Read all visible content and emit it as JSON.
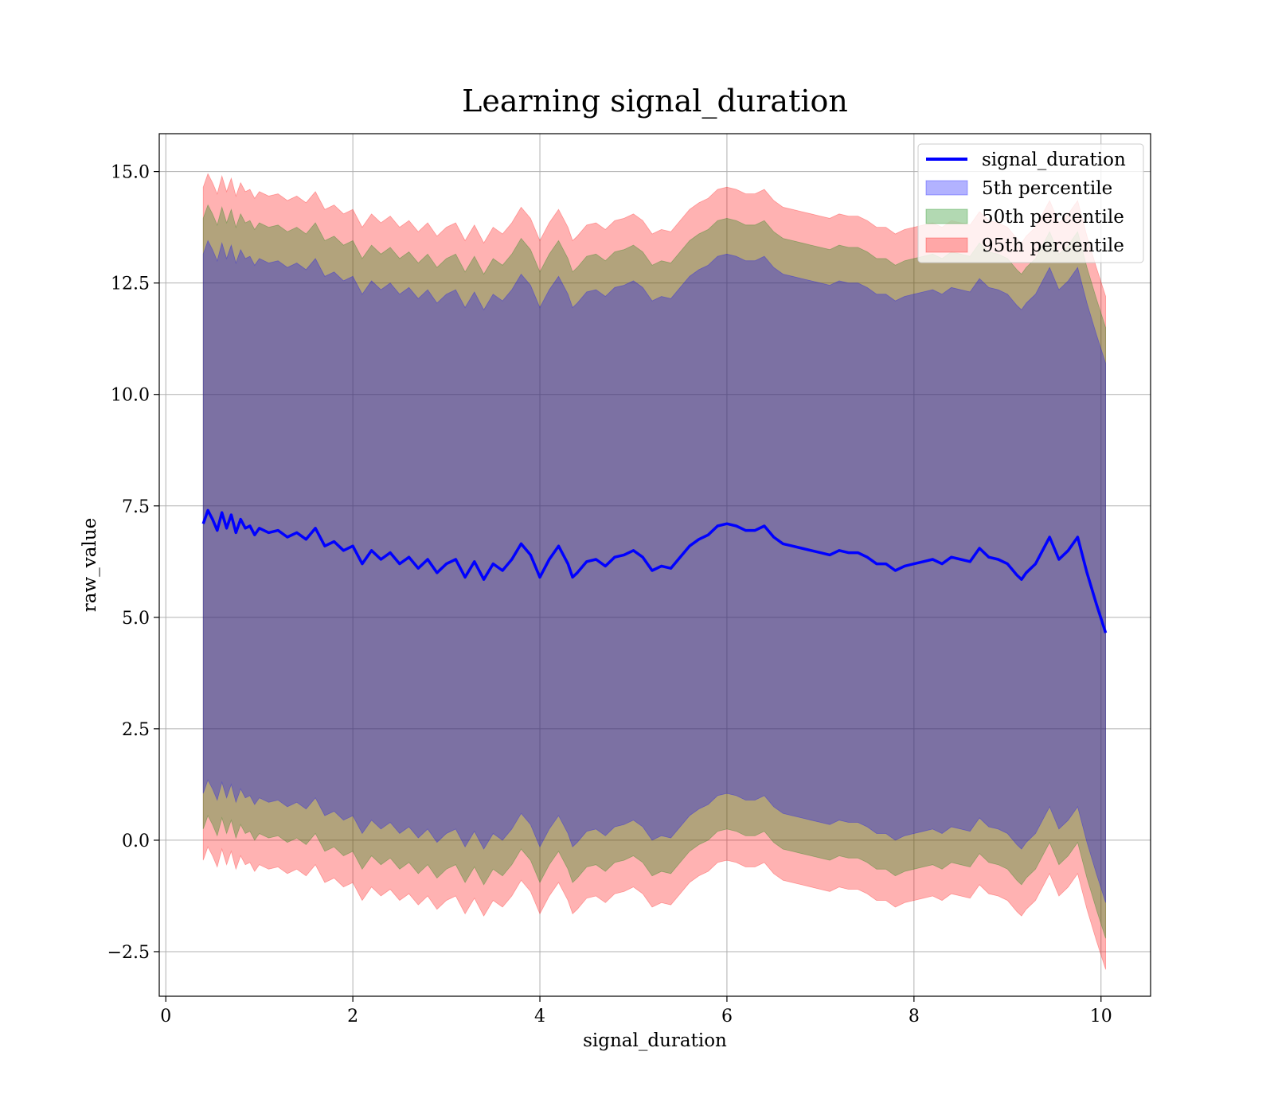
{
  "chart_data": {
    "type": "area",
    "title": "Learning signal_duration",
    "xlabel": "signal_duration",
    "ylabel": "raw_value",
    "xlim": [
      -0.07,
      10.53
    ],
    "ylim": [
      -3.5,
      15.85
    ],
    "xticks": [
      0,
      2,
      4,
      6,
      8,
      10
    ],
    "xtick_labels": [
      "0",
      "2",
      "4",
      "6",
      "8",
      "10"
    ],
    "yticks": [
      -2.5,
      0.0,
      2.5,
      5.0,
      7.5,
      10.0,
      12.5,
      15.0
    ],
    "ytick_labels": [
      "−2.5",
      "0.0",
      "2.5",
      "5.0",
      "7.5",
      "10.0",
      "12.5",
      "15.0"
    ],
    "grid": true,
    "legend_position": "top-right",
    "legend": [
      "signal_duration",
      "5th percentile",
      "50th percentile",
      "95th percentile"
    ],
    "colors": {
      "line": "#0000ff",
      "band_5": "#0000ff",
      "band_50": "#008000",
      "band_95": "#ff0000"
    },
    "series": [
      {
        "name": "signal_duration",
        "x": [
          0.4,
          0.45,
          0.5,
          0.55,
          0.6,
          0.65,
          0.7,
          0.75,
          0.8,
          0.85,
          0.9,
          0.95,
          1.0,
          1.1,
          1.2,
          1.3,
          1.4,
          1.5,
          1.6,
          1.7,
          1.8,
          1.9,
          2.0,
          2.1,
          2.2,
          2.3,
          2.4,
          2.5,
          2.6,
          2.7,
          2.8,
          2.9,
          3.0,
          3.1,
          3.2,
          3.3,
          3.4,
          3.5,
          3.6,
          3.7,
          3.8,
          3.9,
          4.0,
          4.1,
          4.2,
          4.3,
          4.35,
          4.4,
          4.5,
          4.6,
          4.7,
          4.8,
          4.9,
          5.0,
          5.1,
          5.2,
          5.3,
          5.4,
          5.5,
          5.6,
          5.7,
          5.8,
          5.9,
          6.0,
          6.1,
          6.2,
          6.3,
          6.4,
          6.5,
          6.6,
          6.7,
          6.8,
          6.9,
          7.0,
          7.1,
          7.2,
          7.3,
          7.4,
          7.5,
          7.6,
          7.7,
          7.8,
          7.9,
          8.0,
          8.1,
          8.2,
          8.3,
          8.4,
          8.5,
          8.6,
          8.7,
          8.8,
          8.9,
          9.0,
          9.1,
          9.15,
          9.2,
          9.3,
          9.45,
          9.55,
          9.65,
          9.75,
          9.85,
          9.95,
          10.05
        ],
        "values": [
          7.1,
          7.4,
          7.2,
          6.95,
          7.35,
          7.0,
          7.3,
          6.9,
          7.2,
          7.0,
          7.05,
          6.85,
          7.0,
          6.9,
          6.95,
          6.8,
          6.9,
          6.75,
          7.0,
          6.6,
          6.7,
          6.5,
          6.6,
          6.2,
          6.5,
          6.3,
          6.45,
          6.2,
          6.35,
          6.1,
          6.3,
          6.0,
          6.2,
          6.3,
          5.9,
          6.25,
          5.85,
          6.2,
          6.05,
          6.3,
          6.65,
          6.4,
          5.9,
          6.3,
          6.6,
          6.2,
          5.9,
          6.0,
          6.25,
          6.3,
          6.15,
          6.35,
          6.4,
          6.5,
          6.35,
          6.05,
          6.15,
          6.1,
          6.35,
          6.6,
          6.75,
          6.85,
          7.05,
          7.1,
          7.05,
          6.95,
          6.95,
          7.05,
          6.8,
          6.65,
          6.6,
          6.55,
          6.5,
          6.45,
          6.4,
          6.5,
          6.45,
          6.45,
          6.35,
          6.2,
          6.2,
          6.05,
          6.15,
          6.2,
          6.25,
          6.3,
          6.2,
          6.35,
          6.3,
          6.25,
          6.55,
          6.35,
          6.3,
          6.2,
          5.95,
          5.85,
          6.0,
          6.2,
          6.8,
          6.3,
          6.5,
          6.8,
          6.0,
          5.3,
          4.65
        ]
      }
    ]
  }
}
